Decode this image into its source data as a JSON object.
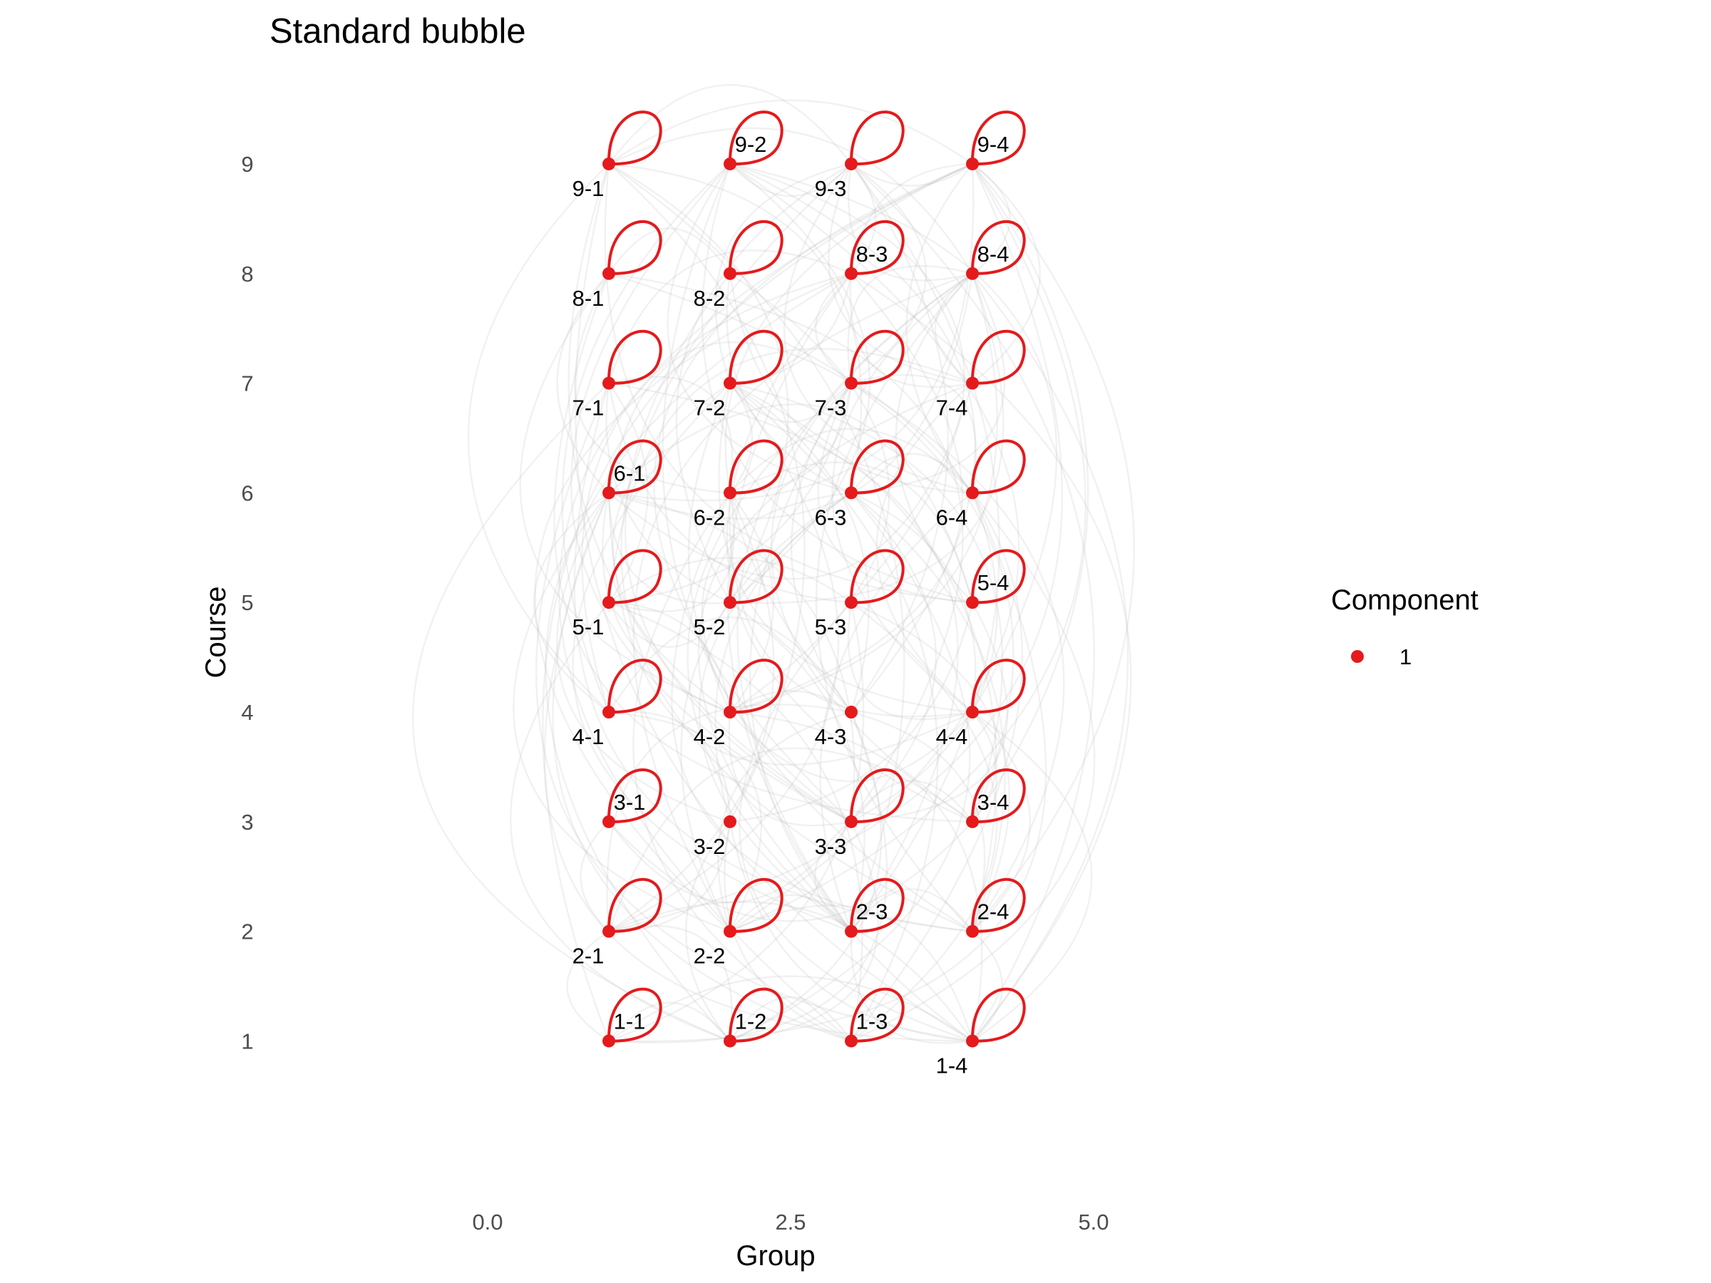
{
  "chart_data": {
    "type": "scatter",
    "title": "Standard bubble",
    "xlabel": "Group",
    "ylabel": "Course",
    "xlim": [
      -1.8,
      6.8
    ],
    "ylim": [
      -0.05,
      9.65
    ],
    "x_ticks": [
      {
        "value": 0,
        "label": "0.0"
      },
      {
        "value": 2.5,
        "label": "2.5"
      },
      {
        "value": 5,
        "label": "5.0"
      }
    ],
    "y_ticks": [
      {
        "value": 1,
        "label": "1"
      },
      {
        "value": 2,
        "label": "2"
      },
      {
        "value": 3,
        "label": "3"
      },
      {
        "value": 4,
        "label": "4"
      },
      {
        "value": 5,
        "label": "5"
      },
      {
        "value": 6,
        "label": "6"
      },
      {
        "value": 7,
        "label": "7"
      },
      {
        "value": 8,
        "label": "8"
      },
      {
        "value": 9,
        "label": "9"
      }
    ],
    "grid": false,
    "legend": {
      "title": "Component",
      "position": "right",
      "entries": [
        {
          "label": "1",
          "color": "#e41a1c"
        }
      ]
    },
    "point_color": "#e41a1c",
    "edge_color": "#bdbdbd",
    "nodes": [
      {
        "label": "1-1",
        "x": 1,
        "y": 1,
        "loop": true,
        "label_pos": "above"
      },
      {
        "label": "1-2",
        "x": 2,
        "y": 1,
        "loop": true,
        "label_pos": "above"
      },
      {
        "label": "1-3",
        "x": 3,
        "y": 1,
        "loop": true,
        "label_pos": "above"
      },
      {
        "label": "1-4",
        "x": 4,
        "y": 1,
        "loop": true,
        "label_pos": "below"
      },
      {
        "label": "2-1",
        "x": 1,
        "y": 2,
        "loop": true,
        "label_pos": "below"
      },
      {
        "label": "2-2",
        "x": 2,
        "y": 2,
        "loop": true,
        "label_pos": "below"
      },
      {
        "label": "2-3",
        "x": 3,
        "y": 2,
        "loop": true,
        "label_pos": "above"
      },
      {
        "label": "2-4",
        "x": 4,
        "y": 2,
        "loop": true,
        "label_pos": "above"
      },
      {
        "label": "3-1",
        "x": 1,
        "y": 3,
        "loop": true,
        "label_pos": "above"
      },
      {
        "label": "3-2",
        "x": 2,
        "y": 3,
        "loop": false,
        "label_pos": "below"
      },
      {
        "label": "3-3",
        "x": 3,
        "y": 3,
        "loop": true,
        "label_pos": "below"
      },
      {
        "label": "3-4",
        "x": 4,
        "y": 3,
        "loop": true,
        "label_pos": "above"
      },
      {
        "label": "4-1",
        "x": 1,
        "y": 4,
        "loop": true,
        "label_pos": "below"
      },
      {
        "label": "4-2",
        "x": 2,
        "y": 4,
        "loop": true,
        "label_pos": "below"
      },
      {
        "label": "4-3",
        "x": 3,
        "y": 4,
        "loop": false,
        "label_pos": "below"
      },
      {
        "label": "4-4",
        "x": 4,
        "y": 4,
        "loop": true,
        "label_pos": "below"
      },
      {
        "label": "5-1",
        "x": 1,
        "y": 5,
        "loop": true,
        "label_pos": "below"
      },
      {
        "label": "5-2",
        "x": 2,
        "y": 5,
        "loop": true,
        "label_pos": "below"
      },
      {
        "label": "5-3",
        "x": 3,
        "y": 5,
        "loop": true,
        "label_pos": "below"
      },
      {
        "label": "5-4",
        "x": 4,
        "y": 5,
        "loop": true,
        "label_pos": "above"
      },
      {
        "label": "6-1",
        "x": 1,
        "y": 6,
        "loop": true,
        "label_pos": "above"
      },
      {
        "label": "6-2",
        "x": 2,
        "y": 6,
        "loop": true,
        "label_pos": "below"
      },
      {
        "label": "6-3",
        "x": 3,
        "y": 6,
        "loop": true,
        "label_pos": "below"
      },
      {
        "label": "6-4",
        "x": 4,
        "y": 6,
        "loop": true,
        "label_pos": "below"
      },
      {
        "label": "7-1",
        "x": 1,
        "y": 7,
        "loop": true,
        "label_pos": "below"
      },
      {
        "label": "7-2",
        "x": 2,
        "y": 7,
        "loop": true,
        "label_pos": "below"
      },
      {
        "label": "7-3",
        "x": 3,
        "y": 7,
        "loop": true,
        "label_pos": "below"
      },
      {
        "label": "7-4",
        "x": 4,
        "y": 7,
        "loop": true,
        "label_pos": "below"
      },
      {
        "label": "8-1",
        "x": 1,
        "y": 8,
        "loop": true,
        "label_pos": "below"
      },
      {
        "label": "8-2",
        "x": 2,
        "y": 8,
        "loop": true,
        "label_pos": "below"
      },
      {
        "label": "8-3",
        "x": 3,
        "y": 8,
        "loop": true,
        "label_pos": "above"
      },
      {
        "label": "8-4",
        "x": 4,
        "y": 8,
        "loop": true,
        "label_pos": "above"
      },
      {
        "label": "9-1",
        "x": 1,
        "y": 9,
        "loop": true,
        "label_pos": "below"
      },
      {
        "label": "9-2",
        "x": 2,
        "y": 9,
        "loop": true,
        "label_pos": "above"
      },
      {
        "label": "9-3",
        "x": 3,
        "y": 9,
        "loop": true,
        "label_pos": "below"
      },
      {
        "label": "9-4",
        "x": 4,
        "y": 9,
        "loop": true,
        "label_pos": "above"
      }
    ]
  }
}
